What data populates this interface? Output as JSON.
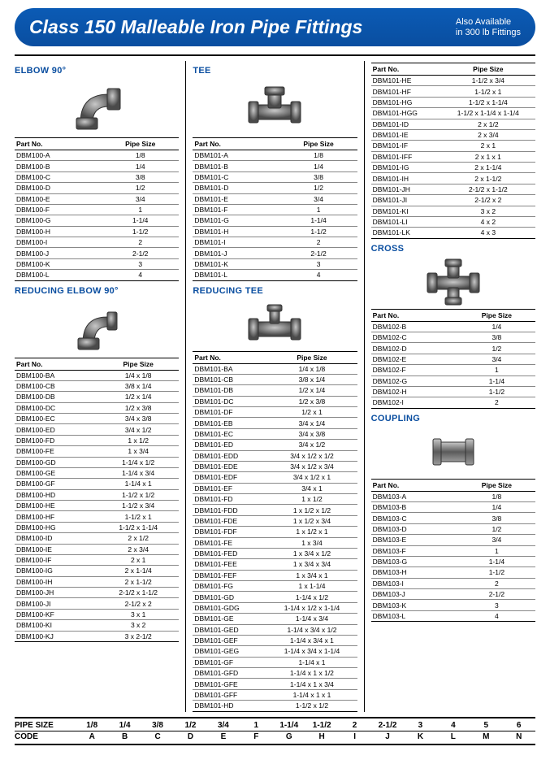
{
  "header": {
    "title": "Class 150 Malleable Iron Pipe Fittings",
    "note_line1": "Also Available",
    "note_line2": "in 300 lb Fittings",
    "bg_color": "#0a4ea0",
    "title_color": "#ffffff"
  },
  "section_title_color": "#0a4ea0",
  "table_header": {
    "part": "Part No.",
    "size": "Pipe Size"
  },
  "sections": {
    "elbow90": {
      "title": "ELBOW 90°",
      "rows": [
        {
          "p": "DBM100-A",
          "s": "1/8"
        },
        {
          "p": "DBM100-B",
          "s": "1/4"
        },
        {
          "p": "DBM100-C",
          "s": "3/8"
        },
        {
          "p": "DBM100-D",
          "s": "1/2"
        },
        {
          "p": "DBM100-E",
          "s": "3/4"
        },
        {
          "p": "DBM100-F",
          "s": "1"
        },
        {
          "p": "DBM100-G",
          "s": "1-1/4"
        },
        {
          "p": "DBM100-H",
          "s": "1-1/2"
        },
        {
          "p": "DBM100-I",
          "s": "2"
        },
        {
          "p": "DBM100-J",
          "s": "2-1/2"
        },
        {
          "p": "DBM100-K",
          "s": "3"
        },
        {
          "p": "DBM100-L",
          "s": "4"
        }
      ]
    },
    "reducing_elbow90": {
      "title": "REDUCING ELBOW 90°",
      "rows": [
        {
          "p": "DBM100-BA",
          "s": "1/4 x 1/8"
        },
        {
          "p": "DBM100-CB",
          "s": "3/8 x 1/4"
        },
        {
          "p": "DBM100-DB",
          "s": "1/2 x 1/4"
        },
        {
          "p": "DBM100-DC",
          "s": "1/2 x 3/8"
        },
        {
          "p": "DBM100-EC",
          "s": "3/4 x 3/8"
        },
        {
          "p": "DBM100-ED",
          "s": "3/4 x 1/2"
        },
        {
          "p": "DBM100-FD",
          "s": "1 x 1/2"
        },
        {
          "p": "DBM100-FE",
          "s": "1 x 3/4"
        },
        {
          "p": "DBM100-GD",
          "s": "1-1/4 x 1/2"
        },
        {
          "p": "DBM100-GE",
          "s": "1-1/4 x 3/4"
        },
        {
          "p": "DBM100-GF",
          "s": "1-1/4 x 1"
        },
        {
          "p": "DBM100-HD",
          "s": "1-1/2 x 1/2"
        },
        {
          "p": "DBM100-HE",
          "s": "1-1/2 x 3/4"
        },
        {
          "p": "DBM100-HF",
          "s": "1-1/2 x 1"
        },
        {
          "p": "DBM100-HG",
          "s": "1-1/2 x 1-1/4"
        },
        {
          "p": "DBM100-ID",
          "s": "2 x 1/2"
        },
        {
          "p": "DBM100-IE",
          "s": "2 x 3/4"
        },
        {
          "p": "DBM100-IF",
          "s": "2 x 1"
        },
        {
          "p": "DBM100-IG",
          "s": "2 x 1-1/4"
        },
        {
          "p": "DBM100-IH",
          "s": "2 x 1-1/2"
        },
        {
          "p": "DBM100-JH",
          "s": "2-1/2 x 1-1/2"
        },
        {
          "p": "DBM100-JI",
          "s": "2-1/2 x 2"
        },
        {
          "p": "DBM100-KF",
          "s": "3 x 1"
        },
        {
          "p": "DBM100-KI",
          "s": "3 x 2"
        },
        {
          "p": "DBM100-KJ",
          "s": "3 x 2-1/2"
        }
      ]
    },
    "tee": {
      "title": "TEE",
      "rows": [
        {
          "p": "DBM101-A",
          "s": "1/8"
        },
        {
          "p": "DBM101-B",
          "s": "1/4"
        },
        {
          "p": "DBM101-C",
          "s": "3/8"
        },
        {
          "p": "DBM101-D",
          "s": "1/2"
        },
        {
          "p": "DBM101-E",
          "s": "3/4"
        },
        {
          "p": "DBM101-F",
          "s": "1"
        },
        {
          "p": "DBM101-G",
          "s": "1-1/4"
        },
        {
          "p": "DBM101-H",
          "s": "1-1/2"
        },
        {
          "p": "DBM101-I",
          "s": "2"
        },
        {
          "p": "DBM101-J",
          "s": "2-1/2"
        },
        {
          "p": "DBM101-K",
          "s": "3"
        },
        {
          "p": "DBM101-L",
          "s": "4"
        }
      ]
    },
    "reducing_tee": {
      "title": "REDUCING TEE",
      "rows": [
        {
          "p": "DBM101-BA",
          "s": "1/4 x 1/8"
        },
        {
          "p": "DBM101-CB",
          "s": "3/8 x 1/4"
        },
        {
          "p": "DBM101-DB",
          "s": "1/2 x 1/4"
        },
        {
          "p": "DBM101-DC",
          "s": "1/2 x 3/8"
        },
        {
          "p": "DBM101-DF",
          "s": "1/2 x 1"
        },
        {
          "p": "DBM101-EB",
          "s": "3/4 x 1/4"
        },
        {
          "p": "DBM101-EC",
          "s": "3/4 x 3/8"
        },
        {
          "p": "DBM101-ED",
          "s": "3/4 x 1/2"
        },
        {
          "p": "DBM101-EDD",
          "s": "3/4 x 1/2 x 1/2"
        },
        {
          "p": "DBM101-EDE",
          "s": "3/4 x 1/2 x 3/4"
        },
        {
          "p": "DBM101-EDF",
          "s": "3/4 x 1/2 x 1"
        },
        {
          "p": "DBM101-EF",
          "s": "3/4 x 1"
        },
        {
          "p": "DBM101-FD",
          "s": "1 x 1/2"
        },
        {
          "p": "DBM101-FDD",
          "s": "1 x 1/2 x 1/2"
        },
        {
          "p": "DBM101-FDE",
          "s": "1 x 1/2 x 3/4"
        },
        {
          "p": "DBM101-FDF",
          "s": "1 x 1/2 x 1"
        },
        {
          "p": "DBM101-FE",
          "s": "1 x 3/4"
        },
        {
          "p": "DBM101-FED",
          "s": "1 x 3/4 x 1/2"
        },
        {
          "p": "DBM101-FEE",
          "s": "1 x 3/4 x 3/4"
        },
        {
          "p": "DBM101-FEF",
          "s": "1 x 3/4 x 1"
        },
        {
          "p": "DBM101-FG",
          "s": "1 x 1-1/4"
        },
        {
          "p": "DBM101-GD",
          "s": "1-1/4 x 1/2"
        },
        {
          "p": "DBM101-GDG",
          "s": "1-1/4 x 1/2 x 1-1/4"
        },
        {
          "p": "DBM101-GE",
          "s": "1-1/4 x 3/4"
        },
        {
          "p": "DBM101-GED",
          "s": "1-1/4 x 3/4 x 1/2"
        },
        {
          "p": "DBM101-GEF",
          "s": "1-1/4 x 3/4 x 1"
        },
        {
          "p": "DBM101-GEG",
          "s": "1-1/4 x 3/4 x 1-1/4"
        },
        {
          "p": "DBM101-GF",
          "s": "1-1/4 x 1"
        },
        {
          "p": "DBM101-GFD",
          "s": "1-1/4 x 1 x 1/2"
        },
        {
          "p": "DBM101-GFE",
          "s": "1-1/4 x 1 x 3/4"
        },
        {
          "p": "DBM101-GFF",
          "s": "1-1/4 x 1 x 1"
        },
        {
          "p": "DBM101-HD",
          "s": "1-1/2 x 1/2"
        }
      ]
    },
    "reducing_tee_cont": {
      "rows": [
        {
          "p": "DBM101-HE",
          "s": "1-1/2 x 3/4"
        },
        {
          "p": "DBM101-HF",
          "s": "1-1/2 x 1"
        },
        {
          "p": "DBM101-HG",
          "s": "1-1/2 x 1-1/4"
        },
        {
          "p": "DBM101-HGG",
          "s": "1-1/2 x 1-1/4 x 1-1/4"
        },
        {
          "p": "DBM101-ID",
          "s": "2 x 1/2"
        },
        {
          "p": "DBM101-IE",
          "s": "2 x 3/4"
        },
        {
          "p": "DBM101-IF",
          "s": "2 x 1"
        },
        {
          "p": "DBM101-IFF",
          "s": "2 x 1 x 1"
        },
        {
          "p": "DBM101-IG",
          "s": "2 x 1-1/4"
        },
        {
          "p": "DBM101-IH",
          "s": "2 x 1-1/2"
        },
        {
          "p": "DBM101-JH",
          "s": "2-1/2 x 1-1/2"
        },
        {
          "p": "DBM101-JI",
          "s": "2-1/2 x 2"
        },
        {
          "p": "DBM101-KI",
          "s": "3 x 2"
        },
        {
          "p": "DBM101-LI",
          "s": "4 x 2"
        },
        {
          "p": "DBM101-LK",
          "s": "4 x 3"
        }
      ]
    },
    "cross": {
      "title": "CROSS",
      "rows": [
        {
          "p": "DBM102-B",
          "s": "1/4"
        },
        {
          "p": "DBM102-C",
          "s": "3/8"
        },
        {
          "p": "DBM102-D",
          "s": "1/2"
        },
        {
          "p": "DBM102-E",
          "s": "3/4"
        },
        {
          "p": "DBM102-F",
          "s": "1"
        },
        {
          "p": "DBM102-G",
          "s": "1-1/4"
        },
        {
          "p": "DBM102-H",
          "s": "1-1/2"
        },
        {
          "p": "DBM102-I",
          "s": "2"
        }
      ]
    },
    "coupling": {
      "title": "COUPLING",
      "rows": [
        {
          "p": "DBM103-A",
          "s": "1/8"
        },
        {
          "p": "DBM103-B",
          "s": "1/4"
        },
        {
          "p": "DBM103-C",
          "s": "3/8"
        },
        {
          "p": "DBM103-D",
          "s": "1/2"
        },
        {
          "p": "DBM103-E",
          "s": "3/4"
        },
        {
          "p": "DBM103-F",
          "s": "1"
        },
        {
          "p": "DBM103-G",
          "s": "1-1/4"
        },
        {
          "p": "DBM103-H",
          "s": "1-1/2"
        },
        {
          "p": "DBM103-I",
          "s": "2"
        },
        {
          "p": "DBM103-J",
          "s": "2-1/2"
        },
        {
          "p": "DBM103-K",
          "s": "3"
        },
        {
          "p": "DBM103-L",
          "s": "4"
        }
      ]
    }
  },
  "footer": {
    "label1": "PIPE SIZE",
    "label2": "CODE",
    "sizes": [
      "1/8",
      "1/4",
      "3/8",
      "1/2",
      "3/4",
      "1",
      "1-1/4",
      "1-1/2",
      "2",
      "2-1/2",
      "3",
      "4",
      "5",
      "6"
    ],
    "codes": [
      "A",
      "B",
      "C",
      "D",
      "E",
      "F",
      "G",
      "H",
      "I",
      "J",
      "K",
      "L",
      "M",
      "N"
    ]
  }
}
